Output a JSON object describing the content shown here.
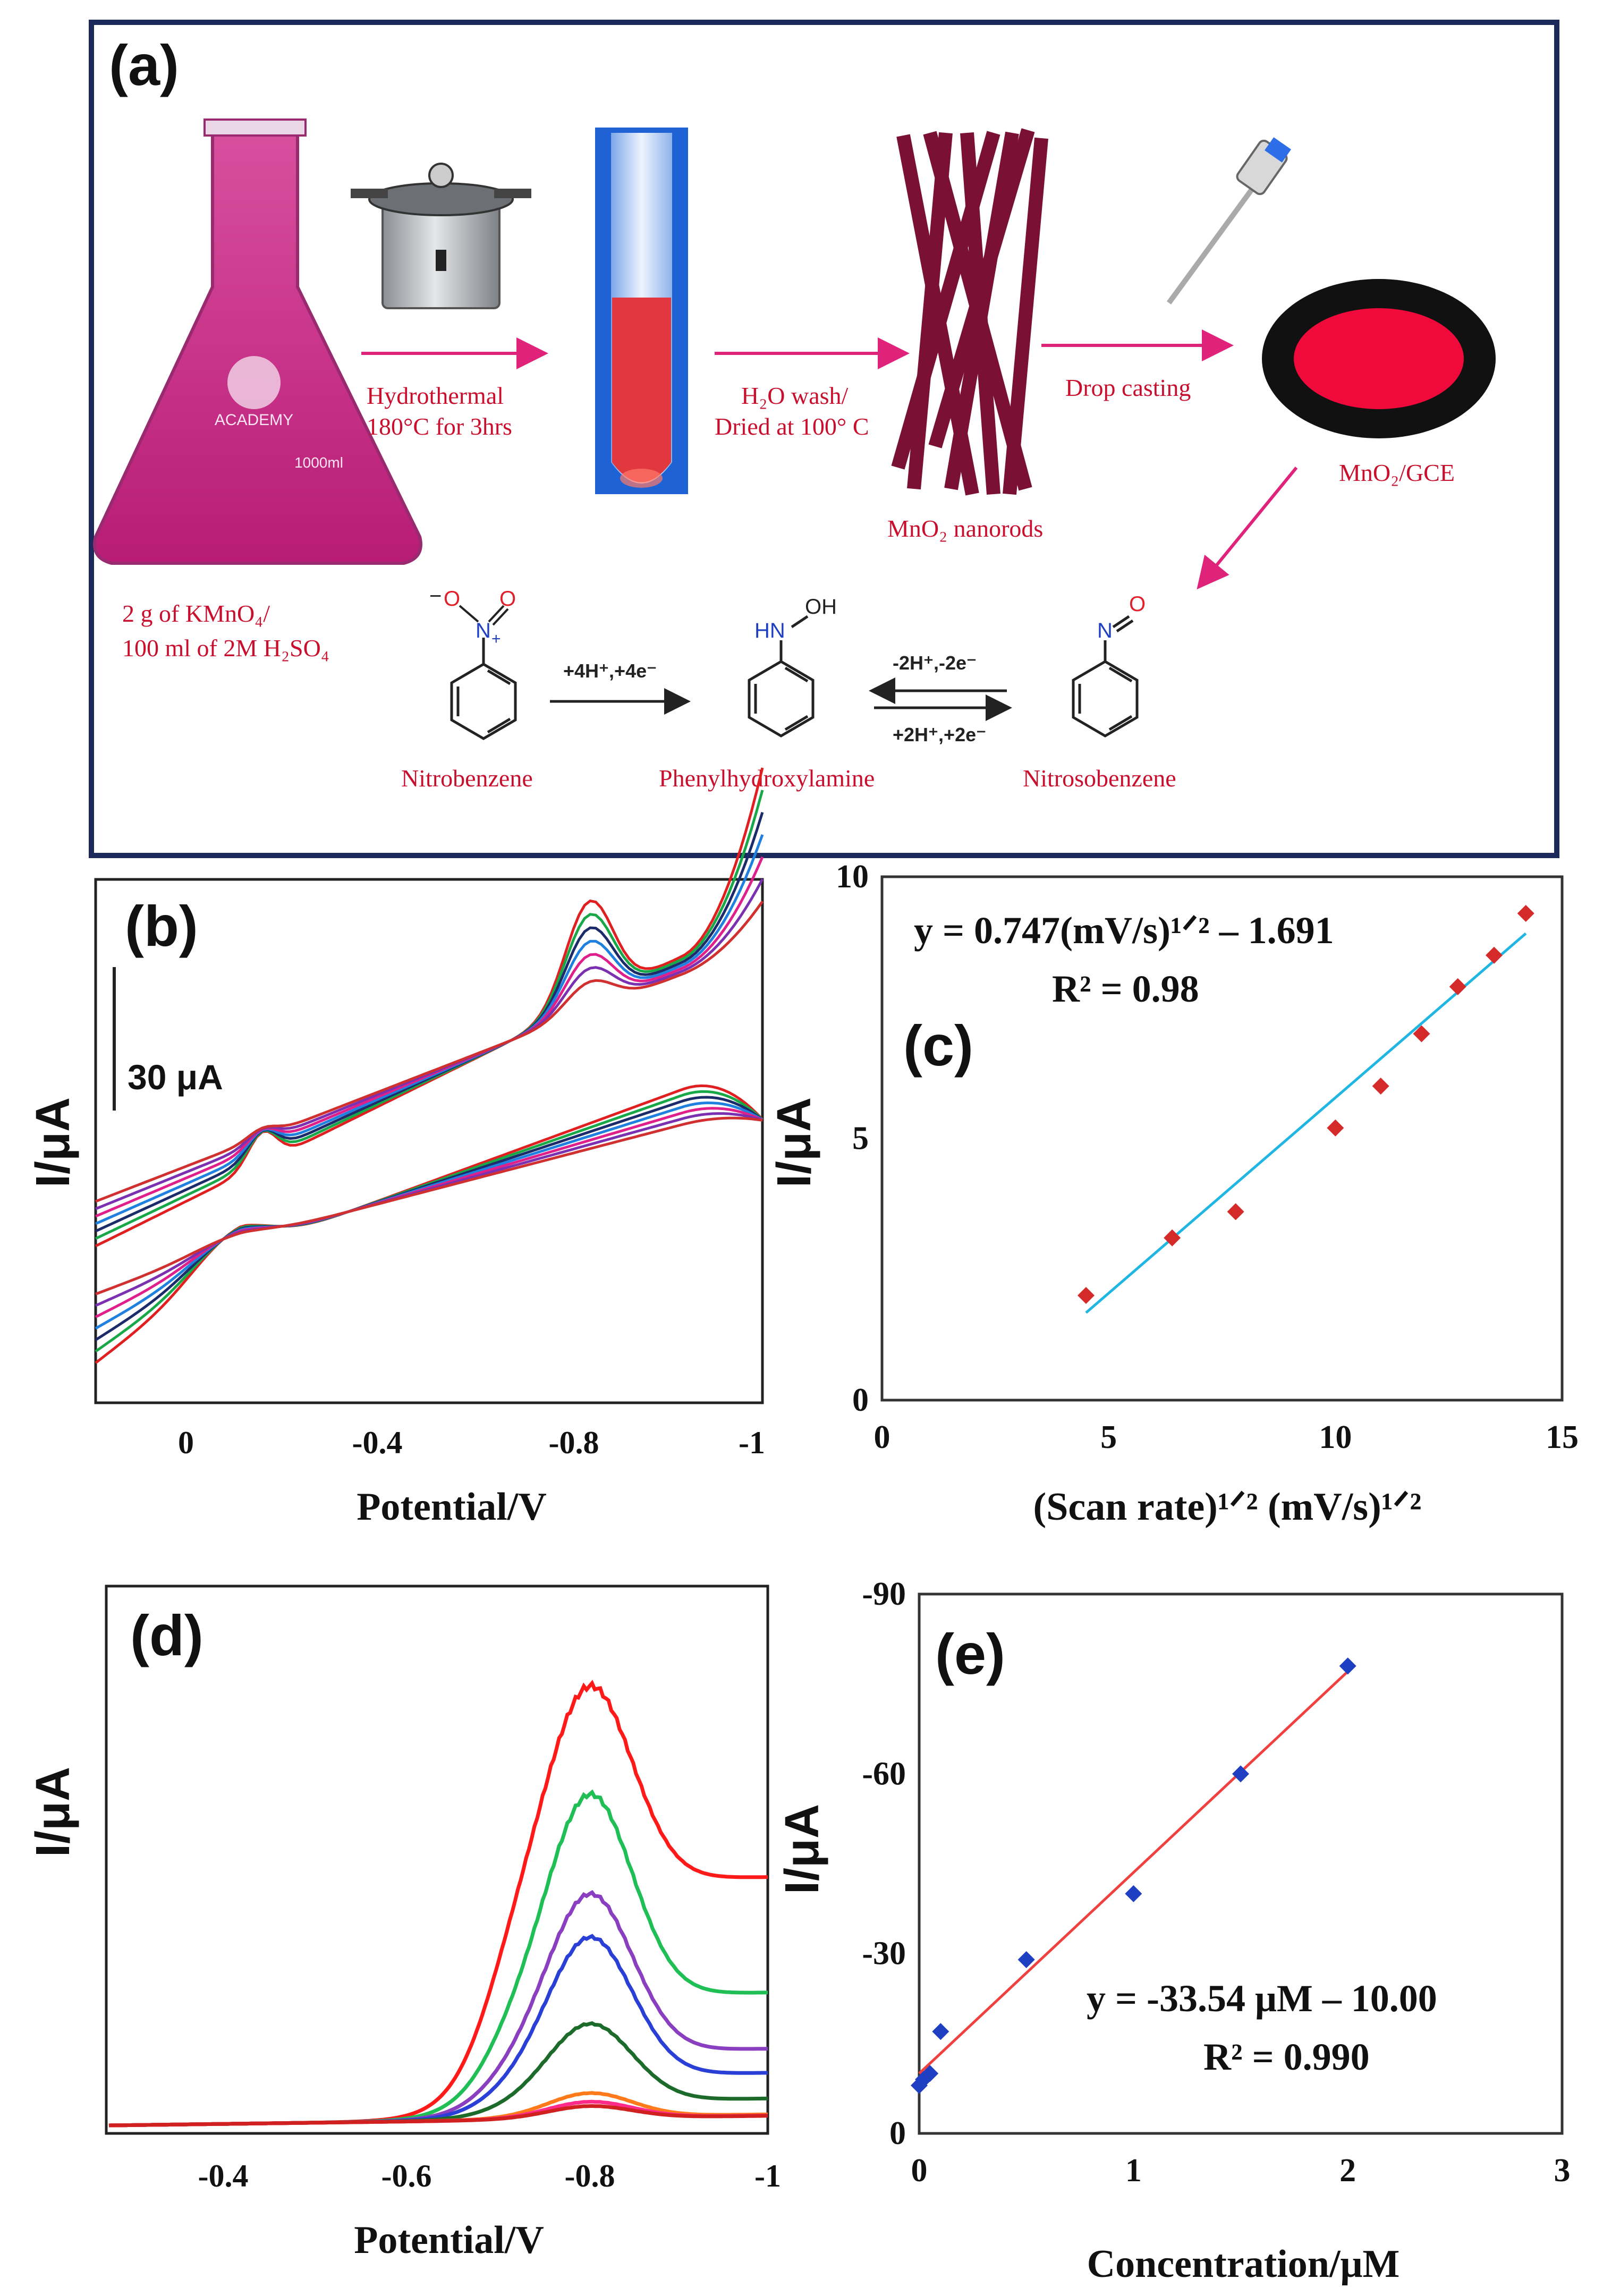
{
  "panel_a": {
    "label": "(a)",
    "step1": [
      "Hydrothermal",
      "180°C for 3hrs"
    ],
    "step2": [
      "H₂O wash/",
      "Dried at 100° C"
    ],
    "step3": "Drop casting",
    "nanorods_label": "MnO₂ nanorods",
    "electrode_label": "MnO₂/GCE",
    "flask_text": "ACADEMY",
    "flask_volume": "1000ml",
    "precursor": [
      "2 g  of  KMnO₄/",
      "100 ml of 2M H₂SO₄"
    ],
    "reaction": {
      "nitro": "Nitrobenzene",
      "phenylhydroxylamine": "Phenylhydroxylamine",
      "nitroso": "Nitrosobenzene",
      "arrow1": "+4H⁺,+4e⁻",
      "arrow2_top": "-2H⁺,-2e⁻",
      "arrow2_bottom": "+2H⁺,+2e⁻",
      "atoms": {
        "O": "O",
        "N": "N",
        "H": "HN",
        "OH": "OH",
        "plus": "+",
        "minus": "−"
      }
    }
  },
  "panel_b": {
    "label": "(b)",
    "scale_bar": "30 μA",
    "xlabel": "Potential/V",
    "ylabel": "I/μA",
    "xticks": [
      "0",
      "-0.4",
      "-0.8",
      "-1"
    ]
  },
  "panel_d": {
    "label": "(d)",
    "xlabel": "Potential/V",
    "ylabel": "I/μA",
    "xticks": [
      "-0.4",
      "-0.6",
      "-0.8",
      "-1"
    ]
  },
  "chart_data": [
    {
      "type": "scatter",
      "panel": "(c)",
      "x": [
        4.5,
        6.4,
        7.8,
        10.0,
        11.0,
        11.9,
        12.7,
        13.5,
        14.2
      ],
      "y": [
        2.0,
        3.1,
        3.6,
        5.2,
        6.0,
        7.0,
        7.9,
        8.5,
        9.3
      ],
      "fit": {
        "slope": 0.747,
        "intercept": -1.691,
        "r2": 0.98
      },
      "equation": "y = 0.747(mV/s)¹ᐟ² – 1.691",
      "r2_text": "R² = 0.98",
      "xlabel": "(Scan rate)¹ᐟ² (mV/s)¹ᐟ²",
      "ylabel": "I/μA",
      "xlim": [
        0,
        15
      ],
      "ylim": [
        0,
        10
      ],
      "xticks": [
        "0",
        "5",
        "10",
        "15"
      ],
      "yticks": [
        "0",
        "5",
        "10"
      ],
      "marker_color": "#d42a2a",
      "line_color": "#1fb6e2"
    },
    {
      "type": "scatter",
      "panel": "(e)",
      "x": [
        0.0,
        0.02,
        0.05,
        0.1,
        0.5,
        1.0,
        1.5,
        2.0
      ],
      "y": [
        -8,
        -9,
        -10,
        -17,
        -29,
        -40,
        -60,
        -78
      ],
      "fit": {
        "slope": -33.54,
        "intercept": -10.0,
        "r2": 0.99
      },
      "equation": "y = -33.54 μM – 10.00",
      "r2_text": "R² = 0.990",
      "xlabel": "Concentration/μM",
      "ylabel": "I/μA",
      "xlim": [
        0,
        3
      ],
      "ylim": [
        0,
        -90
      ],
      "xticks": [
        "0",
        "1",
        "2",
        "3"
      ],
      "yticks": [
        "0",
        "-30",
        "-60",
        "-90"
      ],
      "marker_color": "#1f3fc2",
      "line_color": "#f04040"
    }
  ],
  "colors": {
    "frame": "#1b2a5a",
    "red_text": "#c8102e",
    "arrow": "#e0237a",
    "cv": [
      "#e02020",
      "#18a848",
      "#1c2b6a",
      "#2080e0",
      "#e0208a",
      "#7a30b0",
      "#d03030"
    ],
    "dpv": [
      "#ff1a1a",
      "#1fbf56",
      "#8a3fc0",
      "#2a3fd6",
      "#1d6b2a",
      "#ff7a1a",
      "#ff2a8a",
      "#d02020"
    ]
  }
}
